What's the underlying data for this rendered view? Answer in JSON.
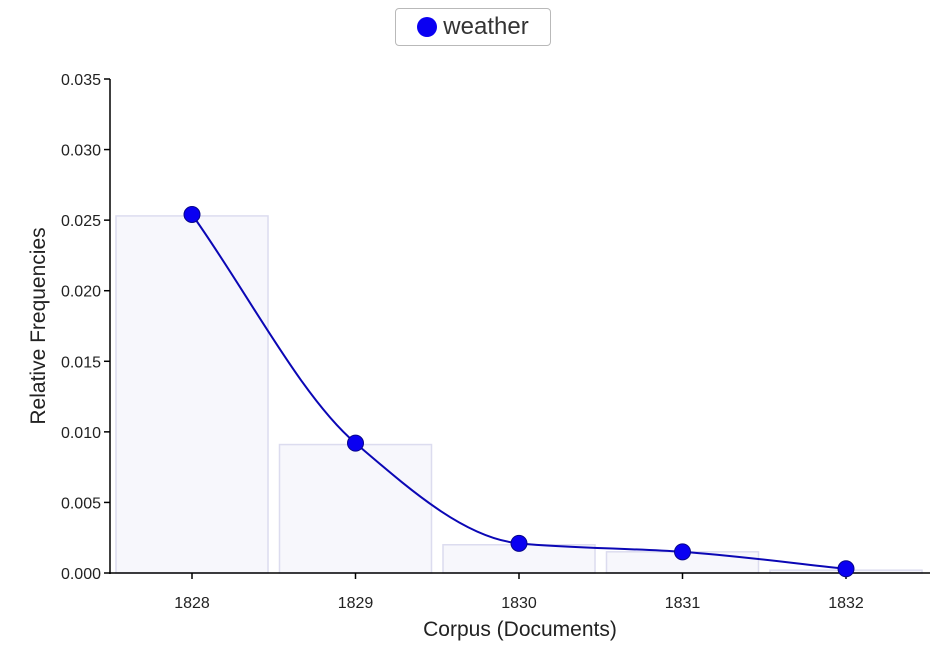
{
  "legend": {
    "label": "weather",
    "marker_color": "#0a00f2"
  },
  "chart_data": {
    "type": "line",
    "title": "",
    "xlabel": "Corpus (Documents)",
    "ylabel": "Relative Frequencies",
    "categories": [
      "1828",
      "1829",
      "1830",
      "1831",
      "1832"
    ],
    "series": [
      {
        "name": "weather",
        "values": [
          0.0254,
          0.0092,
          0.0021,
          0.0015,
          0.0003
        ],
        "color": "#0a00f2",
        "line_color": "#0b07b5"
      }
    ],
    "bars": {
      "values": [
        0.0253,
        0.0091,
        0.002,
        0.0015,
        0.0002
      ],
      "fill": "#f7f7fc",
      "stroke": "#dcdcef"
    },
    "ylim": [
      0,
      0.035
    ],
    "yticks": [
      "0.000",
      "0.005",
      "0.010",
      "0.015",
      "0.020",
      "0.025",
      "0.030",
      "0.035"
    ],
    "grid": false,
    "legend_position": "top-center"
  }
}
